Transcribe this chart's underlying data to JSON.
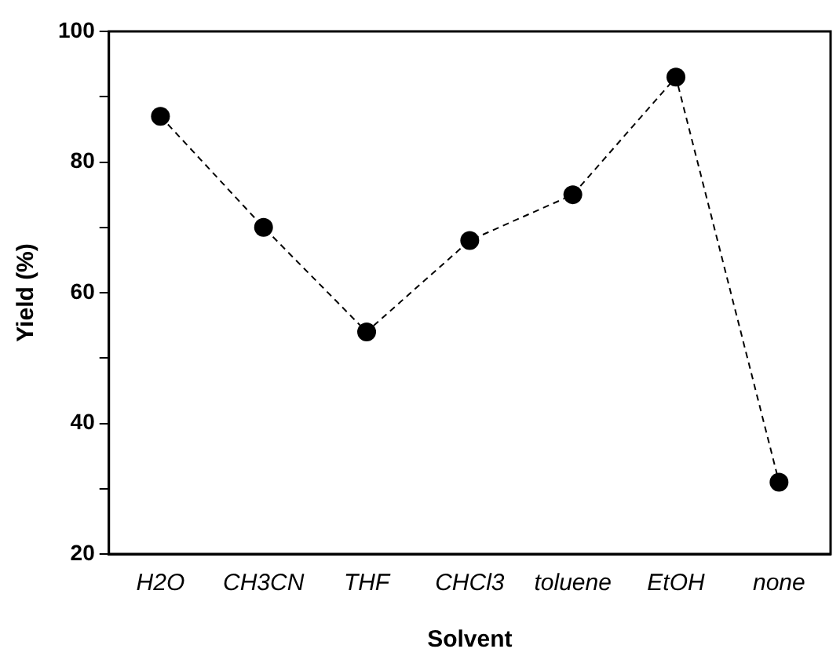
{
  "chart_data": {
    "type": "line",
    "xlabel": "Solvent",
    "ylabel": "Yield (%)",
    "categories": [
      "H2O",
      "CH3CN",
      "THF",
      "CHCl3",
      "toluene",
      "EtOH",
      "none"
    ],
    "series": [
      {
        "color": "#000000",
        "values": [
          87,
          70,
          54,
          68,
          75,
          93,
          31
        ]
      }
    ],
    "ylim": [
      20,
      100
    ],
    "yticks": [
      20,
      {
        "value": 30,
        "label": null
      },
      40,
      {
        "value": 50,
        "label": null
      },
      60,
      {
        "value": 70,
        "label": null
      },
      80,
      {
        "value": 90,
        "label": null
      },
      100
    ],
    "marker": "circle",
    "line_style": "dashed",
    "legend": false
  }
}
